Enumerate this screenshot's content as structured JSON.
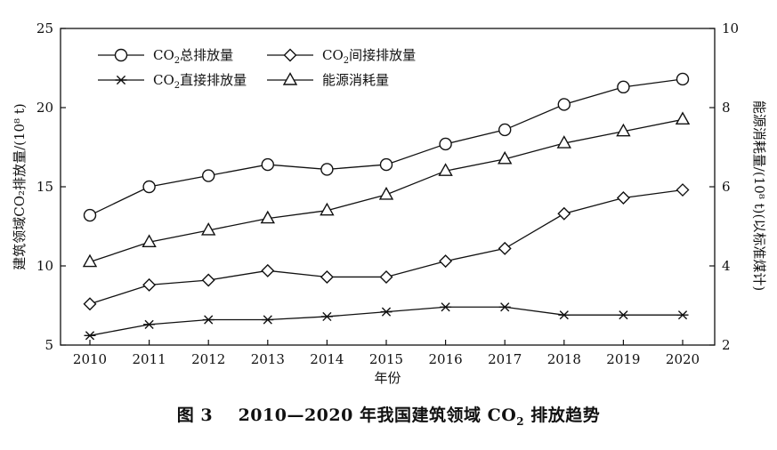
{
  "chart_data": {
    "type": "line",
    "x": [
      2010,
      2011,
      2012,
      2013,
      2014,
      2015,
      2016,
      2017,
      2018,
      2019,
      2020
    ],
    "xlabel": "年份",
    "ylabel_left": "建筑领域CO₂排放量/(10⁸ t)",
    "ylabel_right": "能源消耗量/(10⁸ t)(以标准煤计)",
    "ylim_left": [
      5,
      25
    ],
    "yticks_left": [
      5,
      10,
      15,
      20,
      25
    ],
    "ylim_right": [
      2,
      10
    ],
    "yticks_right": [
      2,
      4,
      6,
      8,
      10
    ],
    "legend_placement": "top-left",
    "grid": false,
    "series": [
      {
        "name": "CO₂总排放量",
        "axis": "left",
        "marker": "circle",
        "values": [
          13.2,
          15.0,
          15.7,
          16.4,
          16.1,
          16.4,
          17.7,
          18.6,
          20.2,
          21.3,
          21.8
        ]
      },
      {
        "name": "CO₂间接排放量",
        "axis": "left",
        "marker": "diamond",
        "values": [
          7.6,
          8.8,
          9.1,
          9.7,
          9.3,
          9.3,
          10.3,
          11.1,
          13.3,
          14.3,
          14.8
        ]
      },
      {
        "name": "CO₂直接排放量",
        "axis": "left",
        "marker": "asterisk",
        "values": [
          5.6,
          6.3,
          6.6,
          6.6,
          6.8,
          7.1,
          7.4,
          7.4,
          6.9,
          6.9,
          6.9
        ]
      },
      {
        "name": "能源消耗量",
        "axis": "right",
        "marker": "triangle",
        "values": [
          4.1,
          4.6,
          4.9,
          5.2,
          5.4,
          5.8,
          6.4,
          6.7,
          7.1,
          7.4,
          7.7
        ]
      }
    ]
  },
  "caption": {
    "fig_label": "图 3",
    "text_before": "2010—2020 年我国建筑领域 CO",
    "sub": "2",
    "text_after": " 排放趋势"
  }
}
